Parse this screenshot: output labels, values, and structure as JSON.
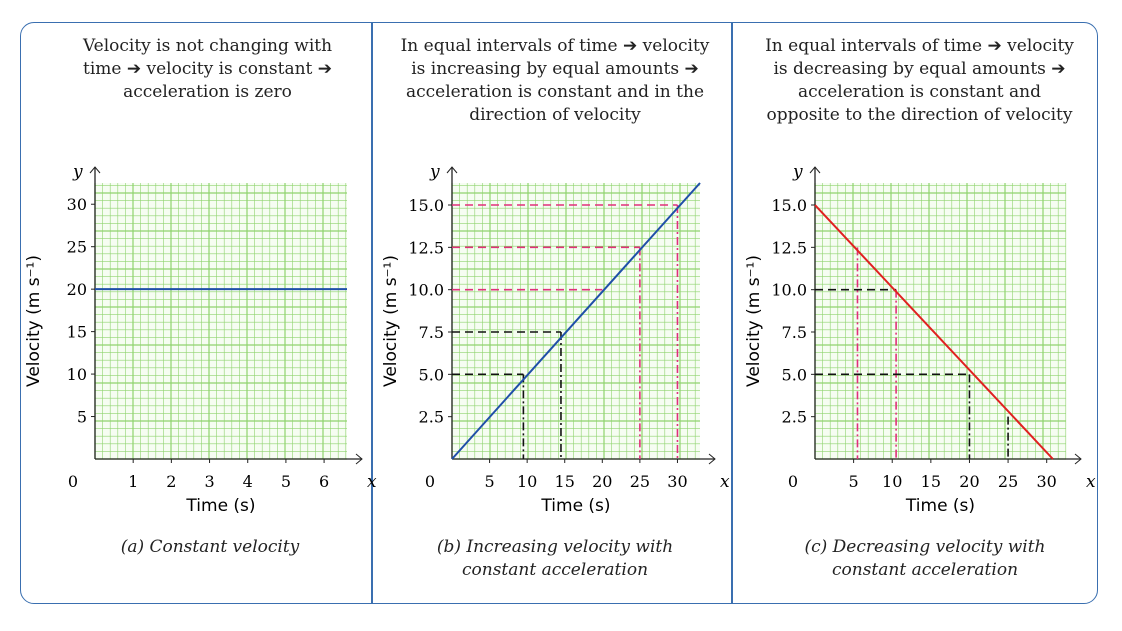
{
  "panels": [
    {
      "description": "Velocity is not changing with time ➔ velocity is constant ➔ acceleration is zero",
      "caption": "(a) Constant velocity"
    },
    {
      "description": "In equal intervals of time ➔ velocity is increasing by equal amounts ➔ acceleration is constant and in the direction of velocity",
      "caption": "(b) Increasing velocity with constant acceleration"
    },
    {
      "description": "In equal intervals of time ➔ velocity is decreasing by equal amounts ➔ acceleration is constant and opposite to the direction of velocity",
      "caption": "(c) Decreasing velocity with constant acceleration"
    }
  ],
  "chart_data": [
    {
      "type": "line",
      "title": "(a) Constant velocity",
      "xlabel": "Time (s)",
      "ylabel": "Velocity (m s⁻¹)",
      "x_axis_symbol": "x",
      "y_axis_symbol": "y",
      "origin_label": "0",
      "xlim": [
        0,
        6.6
      ],
      "ylim": [
        0,
        32.5
      ],
      "xticks": [
        "1",
        "2",
        "3",
        "4",
        "5",
        "6"
      ],
      "xtick_values": [
        1,
        2,
        3,
        4,
        5,
        6
      ],
      "yticks": [
        "5",
        "10",
        "15",
        "20",
        "25",
        "30"
      ],
      "ytick_values": [
        5,
        10,
        15,
        20,
        25,
        30
      ],
      "grid": true,
      "series": [
        {
          "points": [
            [
              0,
              20
            ],
            [
              6.6,
              20
            ]
          ],
          "color": "#1f4fa8"
        }
      ],
      "guides": []
    },
    {
      "type": "line",
      "title": "(b) Increasing velocity with constant acceleration",
      "xlabel": "Time (s)",
      "ylabel": "Velocity (m s⁻¹)",
      "x_axis_symbol": "x",
      "y_axis_symbol": "y",
      "origin_label": "0",
      "xlim": [
        0,
        33
      ],
      "ylim": [
        0,
        16.3
      ],
      "xticks": [
        "5",
        "10",
        "15",
        "20",
        "25",
        "30"
      ],
      "xtick_values": [
        5,
        10,
        15,
        20,
        25,
        30
      ],
      "yticks": [
        "2.5",
        "5.0",
        "7.5",
        "10.0",
        "12.5",
        "15.0"
      ],
      "ytick_values": [
        2.5,
        5,
        7.5,
        10,
        12.5,
        15
      ],
      "grid": true,
      "series": [
        {
          "points": [
            [
              0,
              0
            ],
            [
              33,
              16.3
            ]
          ],
          "color": "#1f4fa8"
        }
      ],
      "guides": [
        {
          "x": 9.5,
          "y": 5,
          "color": "#111",
          "horizontal": true,
          "vertical": true
        },
        {
          "x": 14.5,
          "y": 7.5,
          "color": "#111",
          "horizontal": true,
          "vertical": true
        },
        {
          "x": 20,
          "y": 10,
          "color": "#e0307a",
          "horizontal": true,
          "vertical": false
        },
        {
          "x": 25,
          "y": 12.5,
          "color": "#e0307a",
          "horizontal": true,
          "vertical": true
        },
        {
          "x": 30,
          "y": 15,
          "color": "#e0307a",
          "horizontal": true,
          "vertical": true
        }
      ]
    },
    {
      "type": "line",
      "title": "(c) Decreasing velocity with constant acceleration",
      "xlabel": "Time (s)",
      "ylabel": "Velocity (m s⁻¹)",
      "x_axis_symbol": "x",
      "y_axis_symbol": "y",
      "origin_label": "0",
      "xlim": [
        0,
        32.5
      ],
      "ylim": [
        0,
        16.3
      ],
      "xticks": [
        "5",
        "10",
        "15",
        "20",
        "25",
        "30"
      ],
      "xtick_values": [
        5,
        10,
        15,
        20,
        25,
        30
      ],
      "yticks": [
        "2.5",
        "5.0",
        "7.5",
        "10.0",
        "12.5",
        "15.0"
      ],
      "ytick_values": [
        2.5,
        5,
        7.5,
        10,
        12.5,
        15
      ],
      "grid": true,
      "series": [
        {
          "points": [
            [
              0,
              15
            ],
            [
              30.8,
              0
            ]
          ],
          "color": "#e02020"
        }
      ],
      "guides": [
        {
          "x": 5.5,
          "y": 12.5,
          "color": "#e0307a",
          "horizontal": false,
          "vertical": true
        },
        {
          "x": 10.5,
          "y": 10,
          "color": "#e0307a",
          "horizontal": false,
          "vertical": true
        },
        {
          "x": 10.5,
          "y": 10,
          "color": "#111",
          "horizontal": true,
          "vertical": false
        },
        {
          "x": 20,
          "y": 5,
          "color": "#111",
          "horizontal": true,
          "vertical": true
        },
        {
          "x": 25,
          "y": 2.5,
          "color": "#111",
          "horizontal": false,
          "vertical": true
        }
      ]
    }
  ]
}
